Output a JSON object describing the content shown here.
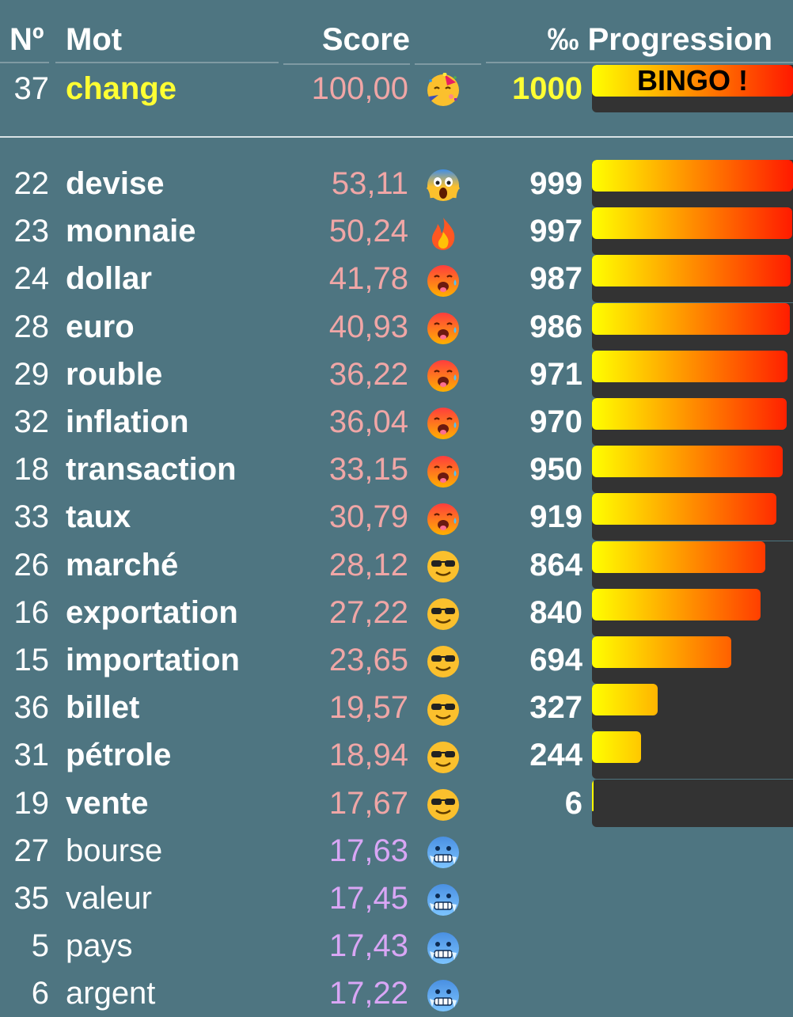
{
  "header": {
    "num": "Nº",
    "mot": "Mot",
    "score": "Score",
    "permil": "‰ Progression"
  },
  "colors": {
    "background": "#4e7581",
    "highlight_word": "#ffff33",
    "score_hot": "#f0a6a6",
    "score_cold": "#d9a6f5",
    "bar_start": "#ffff00",
    "bar_end": "#ff1a00",
    "bar_track": "#333333"
  },
  "current": {
    "num": "37",
    "word": "change",
    "score": "100,00",
    "emoji": "party-face",
    "permil": "1000",
    "progress_permil": 1000,
    "bar_label": "BINGO !"
  },
  "guesses": [
    {
      "num": "22",
      "word": "devise",
      "score": "53,11",
      "emoji": "scream-face",
      "permil": "999",
      "progress_permil": 999,
      "bold": true,
      "cold": false
    },
    {
      "num": "23",
      "word": "monnaie",
      "score": "50,24",
      "emoji": "fire",
      "permil": "997",
      "progress_permil": 997,
      "bold": true,
      "cold": false
    },
    {
      "num": "24",
      "word": "dollar",
      "score": "41,78",
      "emoji": "hot-face",
      "permil": "987",
      "progress_permil": 987,
      "bold": true,
      "cold": false
    },
    {
      "num": "28",
      "word": "euro",
      "score": "40,93",
      "emoji": "hot-face",
      "permil": "986",
      "progress_permil": 986,
      "bold": true,
      "cold": false
    },
    {
      "num": "29",
      "word": "rouble",
      "score": "36,22",
      "emoji": "hot-face",
      "permil": "971",
      "progress_permil": 971,
      "bold": true,
      "cold": false
    },
    {
      "num": "32",
      "word": "inflation",
      "score": "36,04",
      "emoji": "hot-face",
      "permil": "970",
      "progress_permil": 970,
      "bold": true,
      "cold": false
    },
    {
      "num": "18",
      "word": "transaction",
      "score": "33,15",
      "emoji": "hot-face",
      "permil": "950",
      "progress_permil": 950,
      "bold": true,
      "cold": false
    },
    {
      "num": "33",
      "word": "taux",
      "score": "30,79",
      "emoji": "hot-face",
      "permil": "919",
      "progress_permil": 919,
      "bold": true,
      "cold": false
    },
    {
      "num": "26",
      "word": "marché",
      "score": "28,12",
      "emoji": "sunglasses-face",
      "permil": "864",
      "progress_permil": 864,
      "bold": true,
      "cold": false
    },
    {
      "num": "16",
      "word": "exportation",
      "score": "27,22",
      "emoji": "sunglasses-face",
      "permil": "840",
      "progress_permil": 840,
      "bold": true,
      "cold": false
    },
    {
      "num": "15",
      "word": "importation",
      "score": "23,65",
      "emoji": "sunglasses-face",
      "permil": "694",
      "progress_permil": 694,
      "bold": true,
      "cold": false
    },
    {
      "num": "36",
      "word": "billet",
      "score": "19,57",
      "emoji": "sunglasses-face",
      "permil": "327",
      "progress_permil": 327,
      "bold": true,
      "cold": false
    },
    {
      "num": "31",
      "word": "pétrole",
      "score": "18,94",
      "emoji": "sunglasses-face",
      "permil": "244",
      "progress_permil": 244,
      "bold": true,
      "cold": false
    },
    {
      "num": "19",
      "word": "vente",
      "score": "17,67",
      "emoji": "sunglasses-face",
      "permil": "6",
      "progress_permil": 6,
      "bold": true,
      "cold": false
    },
    {
      "num": "27",
      "word": "bourse",
      "score": "17,63",
      "emoji": "cold-face",
      "permil": "",
      "progress_permil": null,
      "bold": false,
      "cold": true
    },
    {
      "num": "35",
      "word": "valeur",
      "score": "17,45",
      "emoji": "cold-face",
      "permil": "",
      "progress_permil": null,
      "bold": false,
      "cold": true
    },
    {
      "num": "5",
      "word": "pays",
      "score": "17,43",
      "emoji": "cold-face",
      "permil": "",
      "progress_permil": null,
      "bold": false,
      "cold": true
    },
    {
      "num": "6",
      "word": "argent",
      "score": "17,22",
      "emoji": "cold-face",
      "permil": "",
      "progress_permil": null,
      "bold": false,
      "cold": true
    }
  ]
}
